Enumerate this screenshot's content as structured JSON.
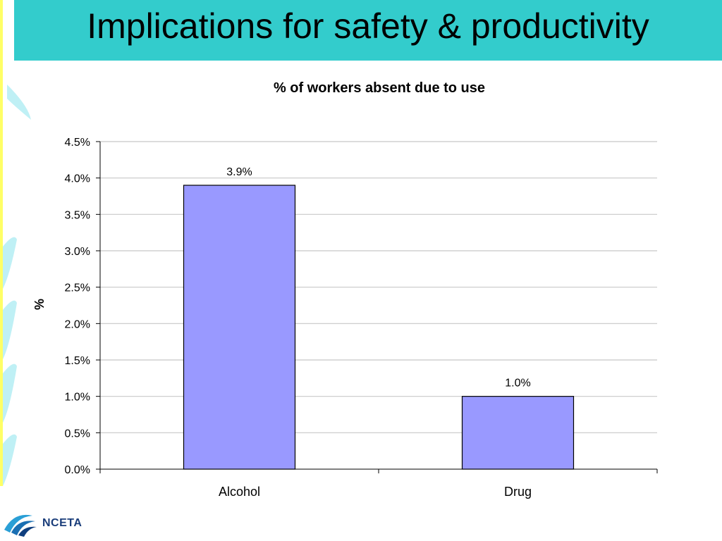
{
  "slide": {
    "title": "Implications for safety & productivity",
    "logo_text": "NCETA",
    "accent_color": "#33cccc",
    "rail_color": "#ffff66"
  },
  "chart_data": {
    "type": "bar",
    "title": "% of workers absent due to use",
    "xlabel": "",
    "ylabel": "%",
    "categories": [
      "Alcohol",
      "Drug"
    ],
    "values": [
      3.9,
      1.0
    ],
    "value_labels": [
      "3.9%",
      "1.0%"
    ],
    "ylim": [
      0,
      4.5
    ],
    "yticks": [
      0,
      0.5,
      1.0,
      1.5,
      2.0,
      2.5,
      3.0,
      3.5,
      4.0,
      4.5
    ],
    "ytick_labels": [
      "0.0%",
      "0.5%",
      "1.0%",
      "1.5%",
      "2.0%",
      "2.5%",
      "3.0%",
      "3.5%",
      "4.0%",
      "4.5%"
    ],
    "grid": true,
    "legend": "none",
    "bar_color": "#9999ff"
  }
}
